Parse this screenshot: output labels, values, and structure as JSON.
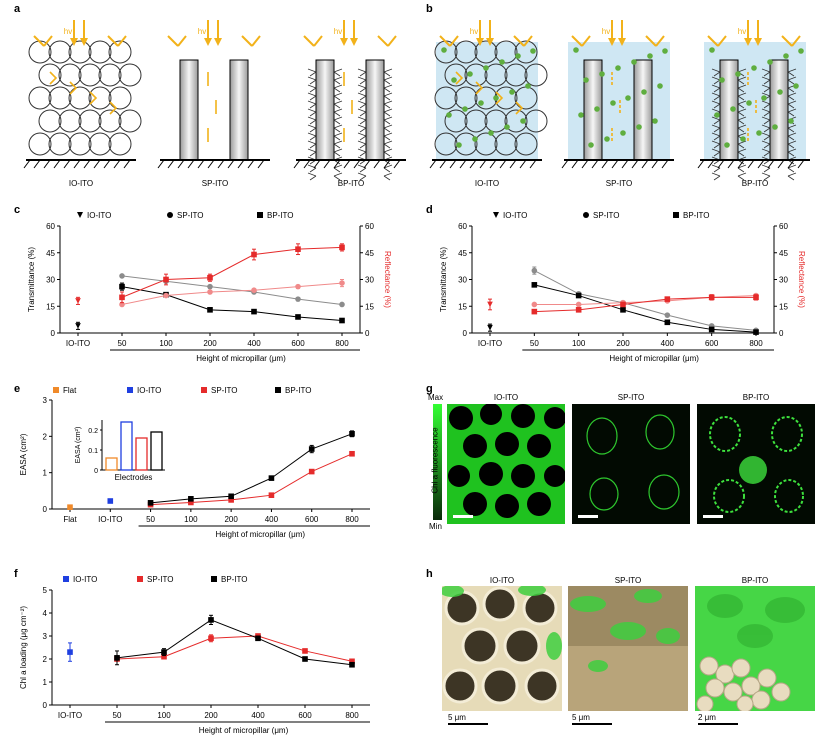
{
  "colors": {
    "ito": "#ffffff",
    "arrow": "#f2b21a",
    "water": "#cfe7f3",
    "cell": "#5fae3f",
    "red": "#e52b2b",
    "pink": "#f08a8a",
    "blue": "#1f3fe0",
    "orange": "#f08a2a",
    "gray": "#8c8c8c",
    "green": "#1fd21f"
  },
  "panel_labels": [
    "a",
    "b",
    "c",
    "d",
    "e",
    "f",
    "g",
    "h"
  ],
  "schematic": {
    "hv": "hv",
    "labels": [
      "IO-ITO",
      "SP-ITO",
      "BP-ITO"
    ]
  },
  "fluorescence": {
    "titles": [
      "IO-ITO",
      "SP-ITO",
      "BP-ITO"
    ],
    "colorbar_label": "Chl a fluorescence",
    "max": "Max",
    "min": "Min"
  },
  "sem": {
    "titles": [
      "IO-ITO",
      "SP-ITO",
      "BP-ITO"
    ],
    "scalebars": [
      "5 μm",
      "5 μm",
      "2 μm"
    ]
  },
  "chart_data": [
    {
      "panel": "c",
      "type": "scatter",
      "ylabel": "Transmittance (%)",
      "y2label": "Reflectance (%)",
      "xlabel": "Height of micropillar (μm)",
      "categories": [
        "IO-ITO",
        "50",
        "100",
        "200",
        "400",
        "600",
        "800"
      ],
      "ylim": [
        0,
        60
      ],
      "y2lim": [
        0,
        60
      ],
      "yticks": [
        "0",
        "15",
        "30",
        "45",
        "60"
      ],
      "y2ticks": [
        "0",
        "15",
        "30",
        "45",
        "60"
      ],
      "legend": [
        "IO-ITO",
        "SP-ITO",
        "BP-ITO"
      ],
      "series": [
        {
          "name": "IO-ITO",
          "axis": "left",
          "marker": "tri",
          "color": "#000000",
          "points": [
            {
              "x": "IO-ITO",
              "y": 4,
              "err": 2
            }
          ]
        },
        {
          "name": "SP-ITO",
          "axis": "left",
          "marker": "circle",
          "color": "#8c8c8c",
          "points": [
            {
              "x": "50",
              "y": 32
            },
            {
              "x": "100",
              "y": 29
            },
            {
              "x": "200",
              "y": 26
            },
            {
              "x": "400",
              "y": 23
            },
            {
              "x": "600",
              "y": 19
            },
            {
              "x": "800",
              "y": 16
            }
          ]
        },
        {
          "name": "BP-ITO",
          "axis": "left",
          "marker": "square",
          "color": "#000000",
          "points": [
            {
              "x": "50",
              "y": 26,
              "err": 2
            },
            {
              "x": "100",
              "y": 21.5
            },
            {
              "x": "200",
              "y": 13
            },
            {
              "x": "400",
              "y": 12
            },
            {
              "x": "600",
              "y": 9
            },
            {
              "x": "800",
              "y": 7
            }
          ]
        },
        {
          "name": "IO-ITO R",
          "axis": "right",
          "marker": "tri",
          "color": "#e52b2b",
          "points": [
            {
              "x": "IO-ITO",
              "y": 18,
              "err": 2
            }
          ]
        },
        {
          "name": "SP-ITO R",
          "axis": "right",
          "marker": "circle",
          "color": "#f08a8a",
          "points": [
            {
              "x": "50",
              "y": 16
            },
            {
              "x": "100",
              "y": 21
            },
            {
              "x": "200",
              "y": 23
            },
            {
              "x": "400",
              "y": 24
            },
            {
              "x": "600",
              "y": 26
            },
            {
              "x": "800",
              "y": 28,
              "err": 2
            }
          ]
        },
        {
          "name": "BP-ITO R",
          "axis": "right",
          "marker": "square",
          "color": "#e52b2b",
          "points": [
            {
              "x": "50",
              "y": 20,
              "err": 3
            },
            {
              "x": "100",
              "y": 30,
              "err": 3
            },
            {
              "x": "200",
              "y": 31,
              "err": 2
            },
            {
              "x": "400",
              "y": 44,
              "err": 3
            },
            {
              "x": "600",
              "y": 47,
              "err": 3
            },
            {
              "x": "800",
              "y": 48,
              "err": 2
            }
          ]
        }
      ]
    },
    {
      "panel": "d",
      "type": "scatter",
      "ylabel": "Transmittance (%)",
      "y2label": "Reflectance (%)",
      "xlabel": "Height of micropillar (μm)",
      "categories": [
        "IO-ITO",
        "50",
        "100",
        "200",
        "400",
        "600",
        "800"
      ],
      "ylim": [
        0,
        60
      ],
      "yticks": [
        "0",
        "15",
        "30",
        "45",
        "60"
      ],
      "y2ticks": [
        "0",
        "15",
        "30",
        "45",
        "60"
      ],
      "legend": [
        "IO-ITO",
        "SP-ITO",
        "BP-ITO"
      ],
      "series": [
        {
          "name": "IO-ITO",
          "axis": "left",
          "marker": "tri",
          "color": "#000000",
          "points": [
            {
              "x": "IO-ITO",
              "y": 3,
              "err": 2
            }
          ]
        },
        {
          "name": "SP-ITO",
          "axis": "left",
          "marker": "circle",
          "color": "#8c8c8c",
          "points": [
            {
              "x": "50",
              "y": 35,
              "err": 2
            },
            {
              "x": "100",
              "y": 22
            },
            {
              "x": "200",
              "y": 17
            },
            {
              "x": "400",
              "y": 10
            },
            {
              "x": "600",
              "y": 4
            },
            {
              "x": "800",
              "y": 1.5
            }
          ]
        },
        {
          "name": "BP-ITO",
          "axis": "left",
          "marker": "square",
          "color": "#000000",
          "points": [
            {
              "x": "50",
              "y": 27
            },
            {
              "x": "100",
              "y": 21
            },
            {
              "x": "200",
              "y": 13
            },
            {
              "x": "400",
              "y": 6
            },
            {
              "x": "600",
              "y": 2
            },
            {
              "x": "800",
              "y": 0.5
            }
          ]
        },
        {
          "name": "IO-ITO R",
          "axis": "right",
          "marker": "tri",
          "color": "#e52b2b",
          "points": [
            {
              "x": "IO-ITO",
              "y": 16,
              "err": 3
            }
          ]
        },
        {
          "name": "SP-ITO R",
          "axis": "right",
          "marker": "circle",
          "color": "#f08a8a",
          "points": [
            {
              "x": "50",
              "y": 16
            },
            {
              "x": "100",
              "y": 16
            },
            {
              "x": "200",
              "y": 17
            },
            {
              "x": "400",
              "y": 18
            },
            {
              "x": "600",
              "y": 20
            },
            {
              "x": "800",
              "y": 21
            }
          ]
        },
        {
          "name": "BP-ITO R",
          "axis": "right",
          "marker": "square",
          "color": "#e52b2b",
          "points": [
            {
              "x": "50",
              "y": 12
            },
            {
              "x": "100",
              "y": 13
            },
            {
              "x": "200",
              "y": 16
            },
            {
              "x": "400",
              "y": 19
            },
            {
              "x": "600",
              "y": 20,
              "err": 1.5
            },
            {
              "x": "800",
              "y": 20,
              "err": 1.5
            }
          ]
        }
      ]
    },
    {
      "panel": "e",
      "type": "scatter",
      "ylabel": "EASA (cm²)",
      "xlabel": "Height of micropillar (μm)",
      "categories": [
        "Flat",
        "IO-ITO",
        "50",
        "100",
        "200",
        "400",
        "600",
        "800"
      ],
      "ylim": [
        0,
        3
      ],
      "yticks": [
        "0",
        "1",
        "2",
        "3"
      ],
      "legend": [
        "Flat",
        "IO-ITO",
        "SP-ITO",
        "BP-ITO"
      ],
      "series": [
        {
          "name": "Flat",
          "marker": "square",
          "color": "#f08a2a",
          "points": [
            {
              "x": "Flat",
              "y": 0.05
            }
          ]
        },
        {
          "name": "IO-ITO",
          "marker": "square",
          "color": "#1f3fe0",
          "points": [
            {
              "x": "IO-ITO",
              "y": 0.22
            }
          ]
        },
        {
          "name": "SP-ITO",
          "marker": "square",
          "color": "#e52b2b",
          "points": [
            {
              "x": "50",
              "y": 0.12
            },
            {
              "x": "100",
              "y": 0.18
            },
            {
              "x": "200",
              "y": 0.25
            },
            {
              "x": "400",
              "y": 0.38
            },
            {
              "x": "600",
              "y": 1.03
            },
            {
              "x": "800",
              "y": 1.52
            }
          ]
        },
        {
          "name": "BP-ITO",
          "marker": "square",
          "color": "#000000",
          "points": [
            {
              "x": "50",
              "y": 0.17,
              "err": 0.05
            },
            {
              "x": "100",
              "y": 0.28,
              "err": 0.05
            },
            {
              "x": "200",
              "y": 0.35,
              "err": 0.05
            },
            {
              "x": "400",
              "y": 0.85
            },
            {
              "x": "600",
              "y": 1.65,
              "err": 0.1
            },
            {
              "x": "800",
              "y": 2.07,
              "err": 0.08
            }
          ]
        }
      ],
      "inset": {
        "type": "bar",
        "ylabel": "EASA (cm²)",
        "xlabel": "Electrodes",
        "ylim": [
          0,
          0.25
        ],
        "yticks": [
          "0",
          "0.1",
          "0.2"
        ],
        "values": [
          0.06,
          0.24,
          0.16,
          0.19
        ],
        "colors": [
          "#f08a2a",
          "#1f3fe0",
          "#e52b2b",
          "#000000"
        ]
      }
    },
    {
      "panel": "f",
      "type": "scatter",
      "ylabel": "Chl a loading (μg cm⁻²)",
      "xlabel": "Height of micropillar (μm)",
      "categories": [
        "IO-ITO",
        "50",
        "100",
        "200",
        "400",
        "600",
        "800"
      ],
      "ylim": [
        0,
        5
      ],
      "yticks": [
        "0",
        "1",
        "2",
        "3",
        "4",
        "5"
      ],
      "legend": [
        "IO-ITO",
        "SP-ITO",
        "BP-ITO"
      ],
      "series": [
        {
          "name": "IO-ITO",
          "marker": "square",
          "color": "#1f3fe0",
          "points": [
            {
              "x": "IO-ITO",
              "y": 2.3,
              "err": 0.4
            }
          ]
        },
        {
          "name": "SP-ITO",
          "marker": "square",
          "color": "#e52b2b",
          "points": [
            {
              "x": "50",
              "y": 2.0
            },
            {
              "x": "100",
              "y": 2.1
            },
            {
              "x": "200",
              "y": 2.9,
              "err": 0.15
            },
            {
              "x": "400",
              "y": 3.0
            },
            {
              "x": "600",
              "y": 2.35
            },
            {
              "x": "800",
              "y": 1.9
            }
          ]
        },
        {
          "name": "BP-ITO",
          "marker": "square",
          "color": "#000000",
          "points": [
            {
              "x": "50",
              "y": 2.05,
              "err": 0.3
            },
            {
              "x": "100",
              "y": 2.3,
              "err": 0.15
            },
            {
              "x": "200",
              "y": 3.7,
              "err": 0.2
            },
            {
              "x": "400",
              "y": 2.9
            },
            {
              "x": "600",
              "y": 2.0
            },
            {
              "x": "800",
              "y": 1.75
            }
          ]
        }
      ]
    }
  ]
}
